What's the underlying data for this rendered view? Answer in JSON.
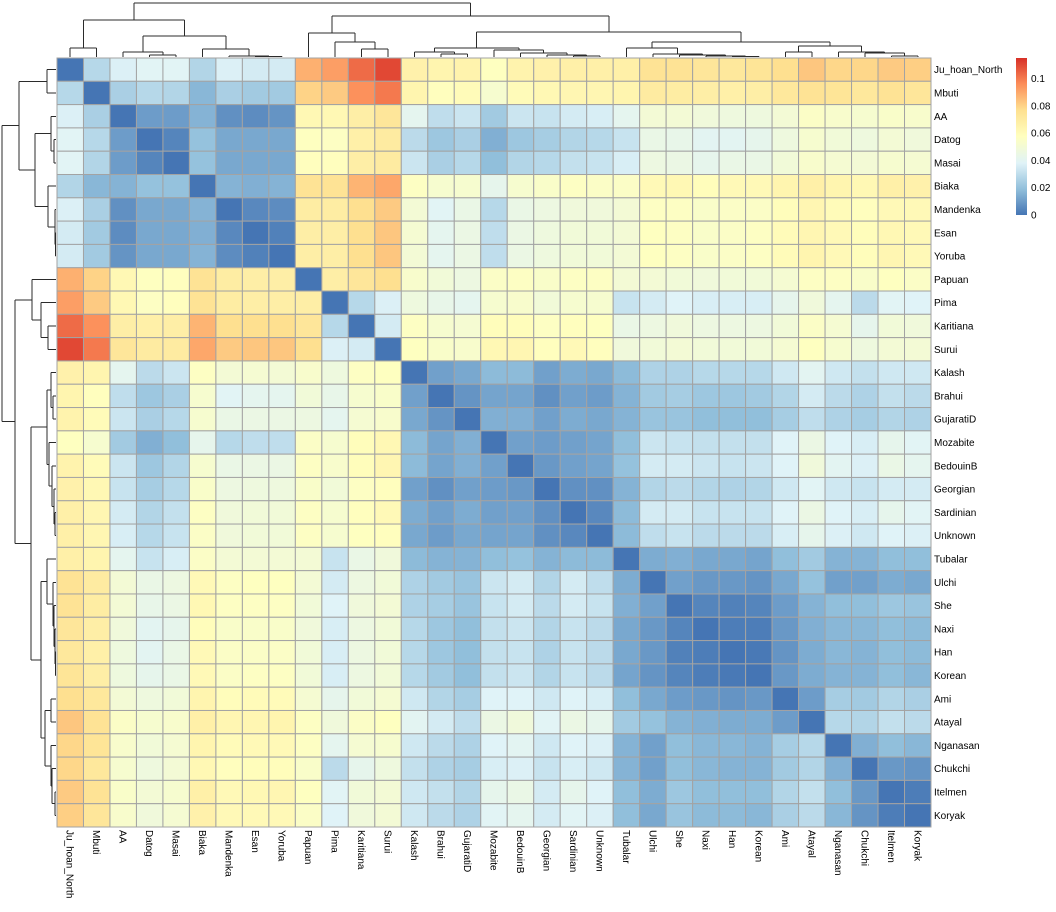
{
  "chart_data": {
    "type": "heatmap",
    "title": "",
    "labels": [
      "Ju_hoan_North",
      "Mbuti",
      "AA",
      "Datog",
      "Masai",
      "Biaka",
      "Mandenka",
      "Esan",
      "Yoruba",
      "Papuan",
      "Pima",
      "Karitiana",
      "Surui",
      "Kalash",
      "Brahui",
      "GujaratiD",
      "Mozabite",
      "BedouinB",
      "Georgian",
      "Sardinian",
      "Unknown",
      "Tubalar",
      "Ulchi",
      "She",
      "Naxi",
      "Han",
      "Korean",
      "Ami",
      "Atayal",
      "Nganasan",
      "Chukchi",
      "Itelmen",
      "Koryak"
    ],
    "symmetric": true,
    "diagonal": 0,
    "upper_triangle": [
      [
        0.028,
        0.037,
        0.039,
        0.039,
        0.027,
        0.037,
        0.035,
        0.035,
        0.088,
        0.092,
        0.103,
        0.11,
        0.066,
        0.064,
        0.065,
        0.057,
        0.065,
        0.066,
        0.067,
        0.067,
        0.067,
        0.075,
        0.075,
        0.073,
        0.072,
        0.074,
        0.077,
        0.083,
        0.079,
        0.079,
        0.082,
        0.081
      ],
      [
        0.025,
        0.028,
        0.027,
        0.017,
        0.025,
        0.023,
        0.023,
        0.08,
        0.082,
        0.095,
        0.1,
        0.064,
        0.058,
        0.06,
        0.052,
        0.06,
        0.062,
        0.063,
        0.063,
        0.064,
        0.07,
        0.069,
        0.068,
        0.067,
        0.068,
        0.072,
        0.075,
        0.074,
        0.072,
        0.075,
        0.073
      ],
      [
        0.01,
        0.01,
        0.016,
        0.007,
        0.006,
        0.008,
        0.062,
        0.062,
        0.068,
        0.073,
        0.041,
        0.03,
        0.033,
        0.023,
        0.033,
        0.032,
        0.035,
        0.036,
        0.041,
        0.05,
        0.05,
        0.048,
        0.047,
        0.047,
        0.05,
        0.055,
        0.053,
        0.052,
        0.054,
        0.053
      ],
      [
        0.004,
        0.02,
        0.013,
        0.013,
        0.013,
        0.057,
        0.056,
        0.067,
        0.07,
        0.029,
        0.022,
        0.025,
        0.015,
        0.022,
        0.024,
        0.027,
        0.028,
        0.032,
        0.044,
        0.043,
        0.04,
        0.04,
        0.042,
        0.047,
        0.052,
        0.049,
        0.047,
        0.05,
        0.048
      ],
      [
        0.02,
        0.013,
        0.013,
        0.013,
        0.058,
        0.058,
        0.068,
        0.07,
        0.033,
        0.025,
        0.028,
        0.019,
        0.027,
        0.028,
        0.031,
        0.032,
        0.036,
        0.046,
        0.045,
        0.042,
        0.044,
        0.044,
        0.049,
        0.053,
        0.051,
        0.05,
        0.052,
        0.051
      ],
      [
        0.016,
        0.015,
        0.016,
        0.075,
        0.075,
        0.087,
        0.09,
        0.056,
        0.052,
        0.052,
        0.042,
        0.052,
        0.054,
        0.056,
        0.055,
        0.055,
        0.061,
        0.062,
        0.059,
        0.061,
        0.061,
        0.064,
        0.067,
        0.064,
        0.062,
        0.067,
        0.066
      ],
      [
        0.005,
        0.006,
        0.069,
        0.069,
        0.077,
        0.082,
        0.05,
        0.039,
        0.044,
        0.028,
        0.044,
        0.046,
        0.048,
        0.048,
        0.05,
        0.056,
        0.056,
        0.054,
        0.055,
        0.055,
        0.059,
        0.063,
        0.06,
        0.058,
        0.061,
        0.061
      ],
      [
        0.003,
        0.068,
        0.068,
        0.077,
        0.083,
        0.051,
        0.041,
        0.045,
        0.03,
        0.045,
        0.047,
        0.049,
        0.049,
        0.05,
        0.057,
        0.056,
        0.054,
        0.055,
        0.056,
        0.06,
        0.063,
        0.061,
        0.059,
        0.062,
        0.061
      ],
      [
        0.068,
        0.068,
        0.077,
        0.083,
        0.05,
        0.041,
        0.045,
        0.03,
        0.045,
        0.047,
        0.049,
        0.049,
        0.05,
        0.057,
        0.056,
        0.054,
        0.055,
        0.056,
        0.06,
        0.064,
        0.061,
        0.059,
        0.063,
        0.061
      ],
      [
        0.068,
        0.073,
        0.077,
        0.053,
        0.049,
        0.046,
        0.055,
        0.056,
        0.054,
        0.056,
        0.056,
        0.05,
        0.05,
        0.049,
        0.048,
        0.049,
        0.049,
        0.051,
        0.056,
        0.056,
        0.054,
        0.057,
        0.055
      ],
      [
        0.028,
        0.037,
        0.047,
        0.043,
        0.041,
        0.052,
        0.053,
        0.049,
        0.052,
        0.052,
        0.032,
        0.035,
        0.038,
        0.036,
        0.036,
        0.036,
        0.042,
        0.048,
        0.041,
        0.029,
        0.039,
        0.038
      ],
      [
        0.035,
        0.056,
        0.052,
        0.051,
        0.059,
        0.059,
        0.056,
        0.058,
        0.057,
        0.044,
        0.046,
        0.048,
        0.046,
        0.046,
        0.046,
        0.049,
        0.055,
        0.051,
        0.042,
        0.049,
        0.048
      ],
      [
        0.057,
        0.054,
        0.053,
        0.062,
        0.063,
        0.058,
        0.061,
        0.058,
        0.048,
        0.049,
        0.05,
        0.049,
        0.049,
        0.049,
        0.051,
        0.057,
        0.052,
        0.047,
        0.05,
        0.05
      ],
      [
        0.011,
        0.013,
        0.018,
        0.018,
        0.011,
        0.014,
        0.013,
        0.018,
        0.026,
        0.026,
        0.028,
        0.028,
        0.028,
        0.034,
        0.04,
        0.034,
        0.031,
        0.034,
        0.034
      ],
      [
        0.008,
        0.012,
        0.012,
        0.007,
        0.011,
        0.01,
        0.016,
        0.023,
        0.024,
        0.022,
        0.022,
        0.023,
        0.027,
        0.035,
        0.029,
        0.026,
        0.031,
        0.029
      ],
      [
        0.015,
        0.015,
        0.011,
        0.014,
        0.013,
        0.016,
        0.021,
        0.021,
        0.019,
        0.019,
        0.019,
        0.024,
        0.03,
        0.026,
        0.024,
        0.027,
        0.026
      ],
      [
        0.011,
        0.01,
        0.011,
        0.012,
        0.019,
        0.033,
        0.032,
        0.031,
        0.031,
        0.031,
        0.038,
        0.045,
        0.038,
        0.036,
        0.042,
        0.039
      ],
      [
        0.009,
        0.011,
        0.012,
        0.02,
        0.035,
        0.035,
        0.033,
        0.032,
        0.033,
        0.038,
        0.048,
        0.04,
        0.037,
        0.044,
        0.041
      ],
      [
        0.007,
        0.007,
        0.016,
        0.027,
        0.029,
        0.027,
        0.026,
        0.027,
        0.034,
        0.039,
        0.034,
        0.032,
        0.035,
        0.035
      ],
      [
        0.005,
        0.018,
        0.035,
        0.035,
        0.032,
        0.032,
        0.032,
        0.038,
        0.045,
        0.038,
        0.036,
        0.042,
        0.039
      ],
      [
        0.018,
        0.03,
        0.032,
        0.029,
        0.029,
        0.029,
        0.036,
        0.042,
        0.037,
        0.034,
        0.038,
        0.037
      ],
      [
        0.014,
        0.015,
        0.013,
        0.013,
        0.012,
        0.019,
        0.023,
        0.016,
        0.016,
        0.019,
        0.019
      ],
      [
        0.011,
        0.009,
        0.009,
        0.008,
        0.013,
        0.02,
        0.011,
        0.011,
        0.014,
        0.013
      ],
      [
        0.004,
        0.003,
        0.004,
        0.01,
        0.016,
        0.019,
        0.019,
        0.022,
        0.021
      ],
      [
        0.002,
        0.002,
        0.009,
        0.015,
        0.017,
        0.017,
        0.019,
        0.018
      ],
      [
        0.001,
        0.008,
        0.014,
        0.017,
        0.016,
        0.019,
        0.018
      ],
      [
        0.009,
        0.014,
        0.016,
        0.016,
        0.019,
        0.017
      ],
      [
        0.01,
        0.024,
        0.023,
        0.027,
        0.025
      ],
      [
        0.028,
        0.027,
        0.031,
        0.029
      ],
      [
        0.015,
        0.019,
        0.017
      ],
      [
        0.009,
        0.008
      ],
      [
        0.002
      ]
    ],
    "color_scale": {
      "min": 0,
      "max": 0.115,
      "stops": [
        {
          "value": 0.0,
          "color": "#4575B4"
        },
        {
          "value": 0.019,
          "color": "#91BFDB"
        },
        {
          "value": 0.038,
          "color": "#E0F3F8"
        },
        {
          "value": 0.0575,
          "color": "#FFFFBF"
        },
        {
          "value": 0.077,
          "color": "#FEE090"
        },
        {
          "value": 0.096,
          "color": "#FC8D59"
        },
        {
          "value": 0.115,
          "color": "#D73027"
        }
      ]
    },
    "legend": {
      "position": "top-right",
      "ticks": [
        {
          "value": 0,
          "label": "0"
        },
        {
          "value": 0.02,
          "label": "0.02"
        },
        {
          "value": 0.04,
          "label": "0.04"
        },
        {
          "value": 0.06,
          "label": "0.06"
        },
        {
          "value": 0.08,
          "label": "0.08"
        },
        {
          "value": 0.1,
          "label": "0.1"
        }
      ]
    },
    "dendrogram": {
      "shared_rows_cols": true,
      "tree": {
        "h": 1.0,
        "c": [
          {
            "h": 0.685,
            "c": [
              {
                "h": 0.167,
                "c": [
                  0,
                  1
                ]
              },
              {
                "h": 0.389,
                "c": [
                  {
                    "h": 0.093,
                    "c": [
                      2,
                      {
                        "h": 0.037,
                        "c": [
                          3,
                          4
                        ]
                      }
                    ]
                  },
                  {
                    "h": 0.148,
                    "c": [
                      5,
                      {
                        "h": 0.02,
                        "c": [
                          6,
                          {
                            "h": 0.01,
                            "c": [
                              7,
                              8
                            ]
                          }
                        ]
                      }
                    ]
                  }
                ]
              }
            ]
          },
          {
            "h": 0.76,
            "c": [
              {
                "h": 0.444,
                "c": [
                  9,
                  {
                    "h": 0.278,
                    "c": [
                      10,
                      {
                        "h": 0.148,
                        "c": [
                          11,
                          12
                        ]
                      }
                    ]
                  }
                ]
              },
              {
                "h": 0.463,
                "c": [
                  {
                    "h": 0.167,
                    "c": [
                      {
                        "h": 0.093,
                        "c": [
                          13,
                          {
                            "h": 0.056,
                            "c": [
                              14,
                              15
                            ]
                          }
                        ]
                      },
                      {
                        "h": 0.13,
                        "c": [
                          16,
                          {
                            "h": 0.07,
                            "c": [
                              17,
                              {
                                "h": 0.04,
                                "c": [
                                  18,
                                  {
                                    "h": 0.02,
                                    "c": [
                                      19,
                                      20
                                    ]
                                  }
                                ]
                              }
                            ]
                          }
                        ]
                      }
                    ]
                  },
                  {
                    "h": 0.278,
                    "c": [
                      {
                        "h": 0.167,
                        "c": [
                          21,
                          {
                            "h": 0.056,
                            "c": [
                              22,
                              {
                                "h": 0.037,
                                "c": [
                                  23,
                                  {
                                    "h": 0.02,
                                    "c": [
                                      24,
                                      {
                                        "h": 0.01,
                                        "c": [
                                          25,
                                          26
                                        ]
                                      }
                                    ]
                                  }
                                ]
                              }
                            ]
                          }
                        ]
                      },
                      {
                        "h": 0.204,
                        "c": [
                          {
                            "h": 0.093,
                            "c": [
                              27,
                              28
                            ]
                          },
                          {
                            "h": 0.093,
                            "c": [
                              29,
                              {
                                "h": 0.074,
                                "c": [
                                  30,
                                  {
                                    "h": 0.02,
                                    "c": [
                                      31,
                                      32
                                    ]
                                  }
                                ]
                              }
                            ]
                          }
                        ]
                      }
                    ]
                  }
                ]
              }
            ]
          }
        ]
      }
    }
  }
}
